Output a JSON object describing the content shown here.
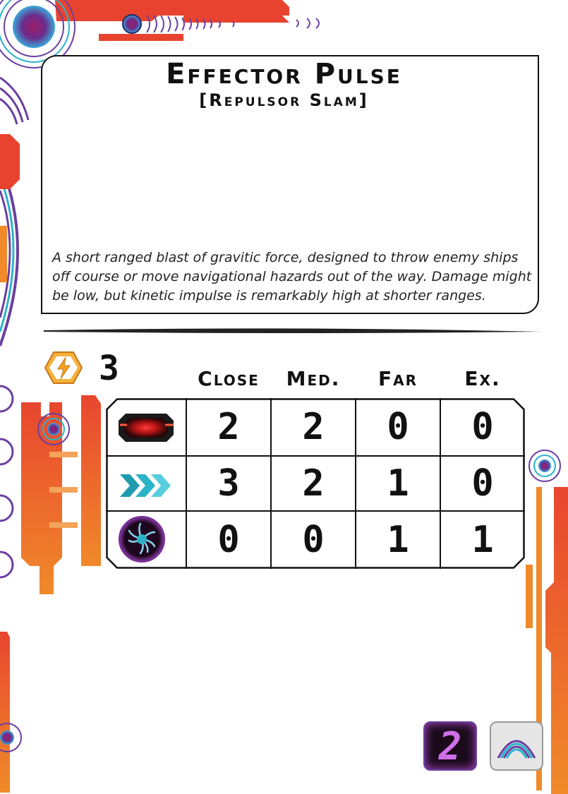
{
  "card": {
    "title": "Effector Pulse",
    "subtitle": "[Repulsor Slam]",
    "flavor_text": "A short ranged blast of gravitic force, designed to throw enemy ships off course or move navigational hazards out of the way. Damage might be low, but kinetic impulse is remarkably high at shorter ranges."
  },
  "energy": {
    "icon": "energy-bolt-icon",
    "value": "3"
  },
  "ranges": [
    "Close",
    "Med.",
    "Far",
    "Ex."
  ],
  "table": {
    "rows": [
      {
        "icon": "damage-icon",
        "values": [
          "2",
          "2",
          "0",
          "0"
        ]
      },
      {
        "icon": "speed-chevrons-icon",
        "values": [
          "3",
          "2",
          "1",
          "0"
        ]
      },
      {
        "icon": "tentacle-creature-icon",
        "values": [
          "0",
          "0",
          "1",
          "1"
        ]
      }
    ]
  },
  "badges": {
    "level": "2",
    "type_icon": "arc-shield-icon"
  },
  "colors": {
    "orange": "#e8732a",
    "red": "#e13a3a",
    "purple": "#6b3fa0",
    "cyan": "#2bb3c8"
  }
}
